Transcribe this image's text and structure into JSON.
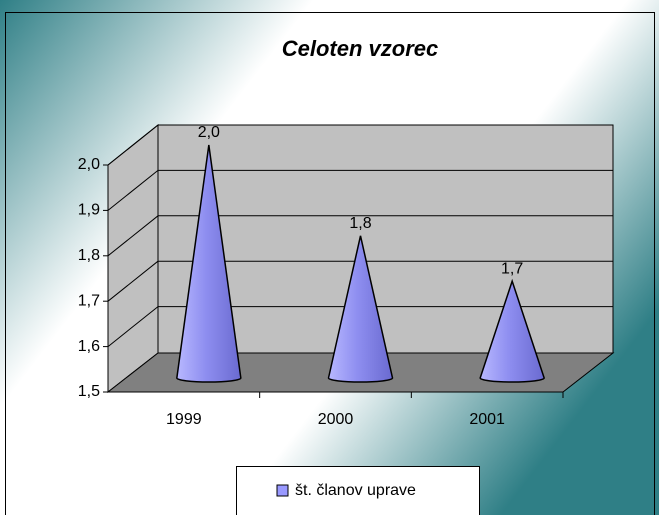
{
  "chart_data": {
    "type": "cone",
    "title": "Celoten vzorec",
    "categories": [
      "1999",
      "2000",
      "2001"
    ],
    "series": [
      {
        "name": "št. članov uprave",
        "color": "#9999ff",
        "values": [
          2.0,
          1.8,
          1.7
        ],
        "value_labels": [
          "2,0",
          "1,8",
          "1,7"
        ]
      }
    ],
    "ylim": [
      1.5,
      2.0
    ],
    "yticks": [
      {
        "value": 1.5,
        "label": "1,5"
      },
      {
        "value": 1.6,
        "label": "1,6"
      },
      {
        "value": 1.7,
        "label": "1,7"
      },
      {
        "value": 1.8,
        "label": "1,8"
      },
      {
        "value": 1.9,
        "label": "1,9"
      },
      {
        "value": 2.0,
        "label": "2,0"
      }
    ],
    "grid": true,
    "legend": "bottom"
  }
}
